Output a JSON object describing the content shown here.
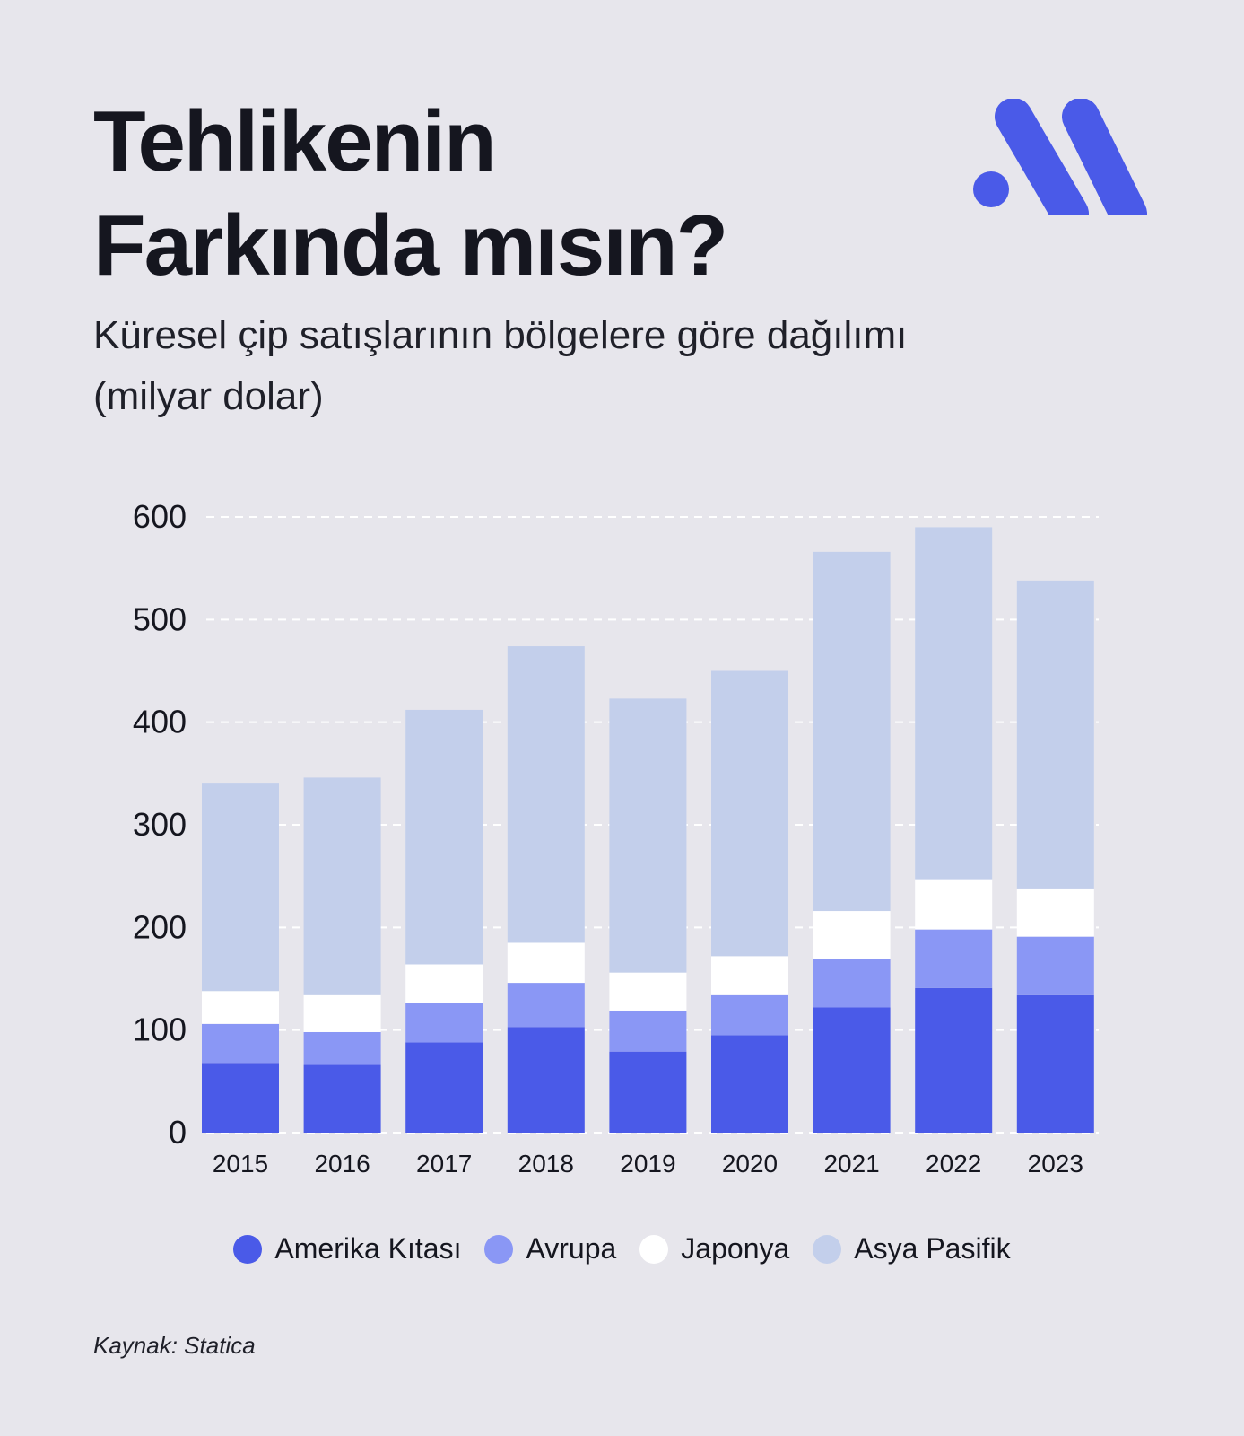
{
  "header": {
    "title_line1": "Tehlikenin",
    "title_line2": "Farkında mısın?",
    "subtitle_line1": "Küresel çip satışlarının bölgelere göre dağılımı",
    "subtitle_line2": "(milyar dolar)"
  },
  "logo": {
    "icon": "brand-logo-icon",
    "color": "#4a5ae8"
  },
  "chart_data": {
    "type": "bar",
    "stacked": true,
    "categories": [
      "2015",
      "2016",
      "2017",
      "2018",
      "2019",
      "2020",
      "2021",
      "2022",
      "2023"
    ],
    "series": [
      {
        "name": "Amerika Kıtası",
        "color": "#4a5ae8",
        "values": [
          68,
          66,
          88,
          103,
          79,
          95,
          122,
          141,
          134
        ]
      },
      {
        "name": "Avrupa",
        "color": "#8a97f5",
        "values": [
          38,
          32,
          38,
          43,
          40,
          39,
          47,
          57,
          57
        ]
      },
      {
        "name": "Japonya",
        "color": "#ffffff",
        "values": [
          32,
          36,
          38,
          39,
          37,
          38,
          47,
          49,
          47
        ]
      },
      {
        "name": "Asya Pasifik",
        "color": "#c3cfeb",
        "values": [
          203,
          212,
          248,
          289,
          267,
          278,
          350,
          343,
          300
        ]
      }
    ],
    "yticks": [
      "600",
      "500",
      "400",
      "300",
      "200",
      "100",
      "0"
    ],
    "ylim": [
      0,
      600
    ],
    "grid": true,
    "legend_position": "bottom"
  },
  "legend": {
    "items": [
      "Amerika Kıtası",
      "Avrupa",
      "Japonya",
      "Asya Pasifik"
    ]
  },
  "footer": {
    "source": "Kaynak: Statica"
  }
}
